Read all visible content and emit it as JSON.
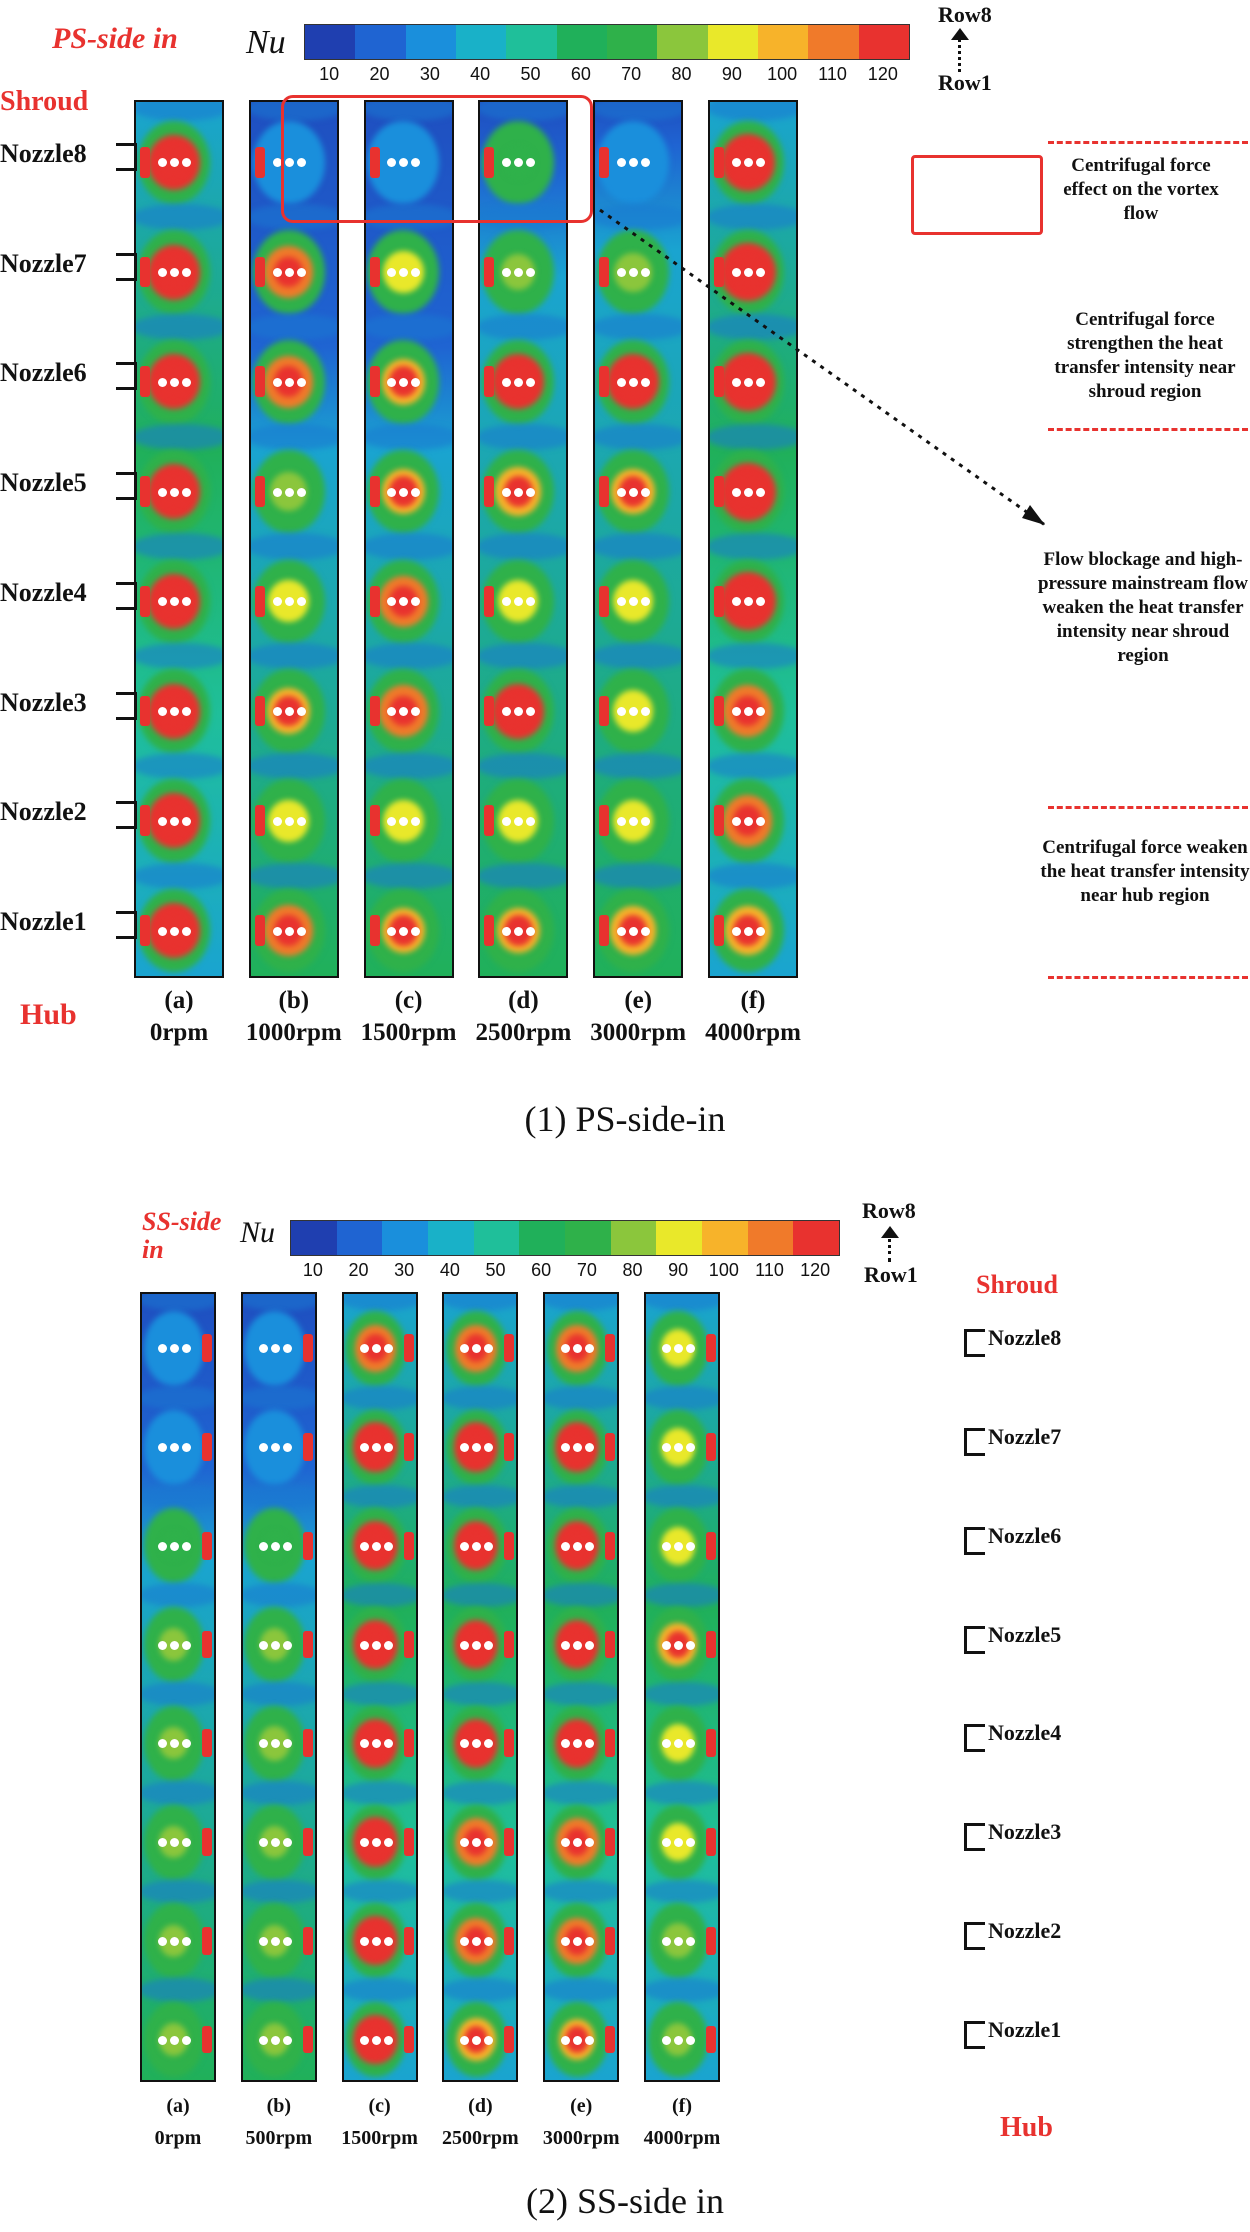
{
  "colorbar": {
    "symbol": "Nu",
    "ticks": [
      "10",
      "20",
      "30",
      "40",
      "50",
      "60",
      "70",
      "80",
      "90",
      "100",
      "110",
      "120"
    ],
    "colors": [
      "#1f3fb0",
      "#1f64d2",
      "#1a8fdc",
      "#19b1c8",
      "#1fbf9a",
      "#20b05a",
      "#2fb14a",
      "#8bc63c",
      "#e9e82a",
      "#f7b32a",
      "#f07a2a",
      "#e8322f"
    ]
  },
  "colors": {
    "accent_red": "#e8322f"
  },
  "ps": {
    "title": "PS-side in",
    "shroud": "Shroud",
    "hub": "Hub",
    "row_top": "Row8",
    "row_bottom": "Row1",
    "nozzles": [
      "Nozzle8",
      "Nozzle7",
      "Nozzle6",
      "Nozzle5",
      "Nozzle4",
      "Nozzle3",
      "Nozzle2",
      "Nozzle1"
    ],
    "cases": [
      {
        "label": "(a)",
        "speed": "0rpm"
      },
      {
        "label": "(b)",
        "speed": "1000rpm"
      },
      {
        "label": "(c)",
        "speed": "1500rpm"
      },
      {
        "label": "(d)",
        "speed": "2500rpm"
      },
      {
        "label": "(e)",
        "speed": "3000rpm"
      },
      {
        "label": "(f)",
        "speed": "4000rpm"
      }
    ],
    "annotations": {
      "a1": "Centrifugal force effect on the vortex flow",
      "a2": "Centrifugal force strengthen the heat transfer intensity near shroud region",
      "a3": "Flow blockage and high- pressure mainstream flow weaken the heat transfer intensity near shroud region",
      "a4": "Centrifugal force weaken the heat transfer intensity near hub region"
    },
    "caption": "(1) PS-side-in"
  },
  "ss": {
    "title": "SS-side in",
    "shroud": "Shroud",
    "hub": "Hub",
    "row_top": "Row8",
    "row_bottom": "Row1",
    "nozzles": [
      "Nozzle8",
      "Nozzle7",
      "Nozzle6",
      "Nozzle5",
      "Nozzle4",
      "Nozzle3",
      "Nozzle2",
      "Nozzle1"
    ],
    "cases": [
      {
        "label": "(a)",
        "speed": "0rpm"
      },
      {
        "label": "(b)",
        "speed": "500rpm"
      },
      {
        "label": "(c)",
        "speed": "1500rpm"
      },
      {
        "label": "(d)",
        "speed": "2500rpm"
      },
      {
        "label": "(e)",
        "speed": "3000rpm"
      },
      {
        "label": "(f)",
        "speed": "4000rpm"
      }
    ],
    "caption": "(2) SS-side in"
  }
}
